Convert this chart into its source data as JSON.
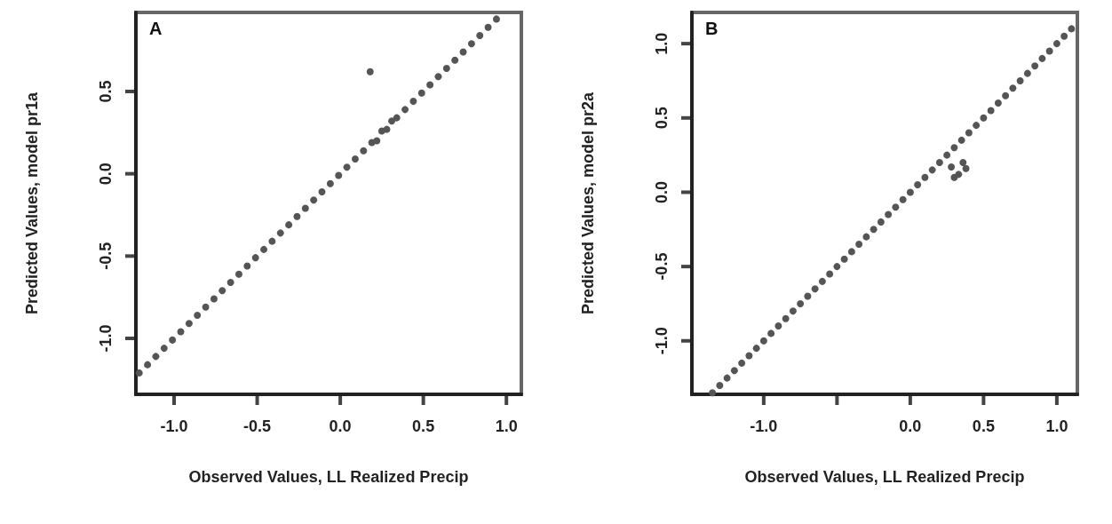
{
  "chart_data": [
    {
      "type": "scatter",
      "xlabel": "Observed Values, LL Realized Precip",
      "ylabel": "Predicted Values, model pr1a",
      "annotations": [
        "A"
      ],
      "marker": "circle",
      "color": "#555555",
      "xlim": [
        -1.23,
        1.09
      ],
      "ylim": [
        -1.34,
        0.98
      ],
      "xticks": [
        {
          "value": -1,
          "label": "-1.0"
        },
        {
          "value": -0.5,
          "label": "-0.5"
        },
        {
          "value": 0,
          "label": "0.0"
        },
        {
          "value": 0.5,
          "label": "0.5"
        },
        {
          "value": 1,
          "label": "1.0"
        }
      ],
      "yticks": [
        {
          "value": -1,
          "label": "-1.0"
        },
        {
          "value": -0.5,
          "label": "-0.5"
        },
        {
          "value": 0,
          "label": "0.0"
        },
        {
          "value": 0.5,
          "label": "0.5"
        }
      ],
      "x": [
        -1.21,
        -1.16,
        -1.11,
        -1.06,
        -1.01,
        -0.96,
        -0.91,
        -0.86,
        -0.81,
        -0.76,
        -0.71,
        -0.66,
        -0.61,
        -0.56,
        -0.51,
        -0.46,
        -0.41,
        -0.36,
        -0.31,
        -0.26,
        -0.21,
        -0.16,
        -0.11,
        -0.06,
        -0.01,
        0.04,
        0.09,
        0.14,
        0.19,
        0.22,
        0.25,
        0.28,
        0.31,
        0.34,
        0.39,
        0.44,
        0.49,
        0.54,
        0.59,
        0.64,
        0.69,
        0.74,
        0.79,
        0.84,
        0.89,
        0.94,
        0.18
      ],
      "values": [
        -1.21,
        -1.16,
        -1.11,
        -1.06,
        -1.01,
        -0.96,
        -0.91,
        -0.86,
        -0.81,
        -0.76,
        -0.71,
        -0.66,
        -0.61,
        -0.56,
        -0.51,
        -0.46,
        -0.41,
        -0.36,
        -0.31,
        -0.26,
        -0.21,
        -0.16,
        -0.11,
        -0.06,
        -0.01,
        0.04,
        0.09,
        0.14,
        0.19,
        0.2,
        0.26,
        0.27,
        0.32,
        0.34,
        0.39,
        0.44,
        0.49,
        0.54,
        0.59,
        0.64,
        0.69,
        0.74,
        0.79,
        0.84,
        0.89,
        0.94,
        0.62
      ]
    },
    {
      "type": "scatter",
      "xlabel": "Observed Values, LL Realized Precip",
      "ylabel": "Predicted Values, model pr2a",
      "annotations": [
        "B"
      ],
      "marker": "circle",
      "color": "#555555",
      "xlim": [
        -1.49,
        1.14
      ],
      "ylim": [
        -1.36,
        1.21
      ],
      "xticks": [
        {
          "value": -1,
          "label": "-1.0"
        },
        {
          "value": -0.5,
          "label": null
        },
        {
          "value": 0,
          "label": "0.0"
        },
        {
          "value": 0.5,
          "label": "0.5"
        },
        {
          "value": 1,
          "label": "1.0"
        }
      ],
      "yticks": [
        {
          "value": -1,
          "label": "-1.0"
        },
        {
          "value": -0.5,
          "label": "-0.5"
        },
        {
          "value": 0,
          "label": "0.0"
        },
        {
          "value": 0.5,
          "label": "0.5"
        },
        {
          "value": 1,
          "label": "1.0"
        }
      ],
      "x": [
        -1.35,
        -1.3,
        -1.25,
        -1.2,
        -1.15,
        -1.1,
        -1.05,
        -1.0,
        -0.95,
        -0.9,
        -0.85,
        -0.8,
        -0.75,
        -0.7,
        -0.65,
        -0.6,
        -0.55,
        -0.5,
        -0.45,
        -0.4,
        -0.35,
        -0.3,
        -0.25,
        -0.2,
        -0.15,
        -0.1,
        -0.05,
        0.0,
        0.05,
        0.1,
        0.15,
        0.2,
        0.25,
        0.3,
        0.35,
        0.4,
        0.45,
        0.5,
        0.55,
        0.6,
        0.65,
        0.7,
        0.75,
        0.8,
        0.85,
        0.9,
        0.95,
        1.0,
        1.05,
        1.1,
        0.28,
        0.33,
        0.38,
        0.3,
        0.36
      ],
      "values": [
        -1.35,
        -1.3,
        -1.25,
        -1.2,
        -1.15,
        -1.1,
        -1.05,
        -1.0,
        -0.95,
        -0.9,
        -0.85,
        -0.8,
        -0.75,
        -0.7,
        -0.65,
        -0.6,
        -0.55,
        -0.5,
        -0.45,
        -0.4,
        -0.35,
        -0.3,
        -0.25,
        -0.2,
        -0.15,
        -0.1,
        -0.05,
        0.0,
        0.05,
        0.1,
        0.15,
        0.2,
        0.25,
        0.3,
        0.35,
        0.4,
        0.45,
        0.5,
        0.55,
        0.6,
        0.65,
        0.7,
        0.75,
        0.8,
        0.85,
        0.9,
        0.95,
        1.0,
        1.05,
        1.1,
        0.17,
        0.12,
        0.16,
        0.1,
        0.2
      ]
    }
  ]
}
